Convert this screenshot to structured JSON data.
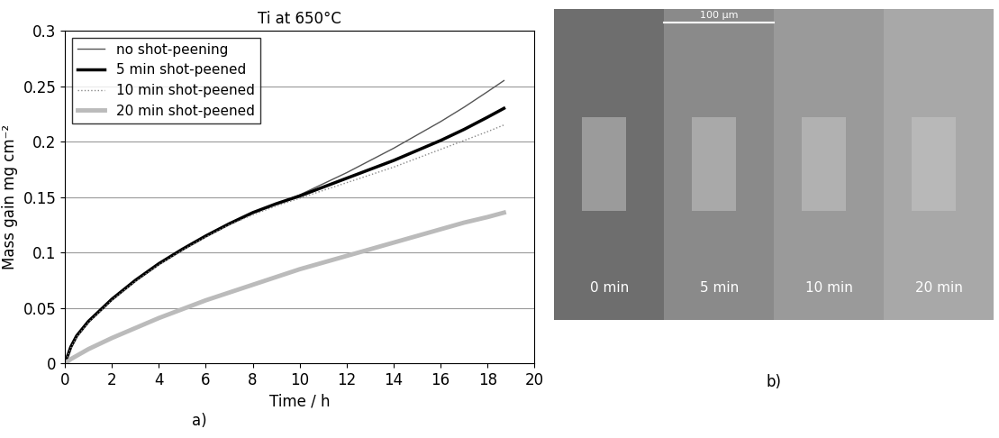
{
  "chart_data": {
    "type": "line",
    "title": "Ti at 650°C",
    "x_label": "Time / h",
    "y_label": "Mass gain mg cm⁻²",
    "panel_label": "a)",
    "x": [
      0,
      0.25,
      0.5,
      1,
      2,
      3,
      4,
      5,
      6,
      7,
      8,
      9,
      10,
      11,
      12,
      13,
      14,
      15,
      16,
      17,
      18,
      18.7
    ],
    "series": [
      {
        "name": "no shot-peening",
        "color": "#555555",
        "line_style": "solid",
        "values": [
          0,
          0.015,
          0.025,
          0.038,
          0.058,
          0.075,
          0.09,
          0.103,
          0.115,
          0.126,
          0.136,
          0.144,
          0.152,
          0.162,
          0.172,
          0.183,
          0.194,
          0.206,
          0.218,
          0.231,
          0.245,
          0.255
        ]
      },
      {
        "name": "5 min shot-peened",
        "color": "#000000",
        "line_style": "solid",
        "values": [
          0,
          0.015,
          0.025,
          0.038,
          0.058,
          0.075,
          0.09,
          0.103,
          0.115,
          0.126,
          0.136,
          0.144,
          0.151,
          0.159,
          0.167,
          0.175,
          0.183,
          0.192,
          0.201,
          0.211,
          0.222,
          0.23
        ]
      },
      {
        "name": "10 min shot-peened",
        "color": "#888888",
        "line_style": "dotted",
        "values": [
          0,
          0.014,
          0.024,
          0.037,
          0.057,
          0.074,
          0.089,
          0.102,
          0.114,
          0.125,
          0.134,
          0.142,
          0.149,
          0.156,
          0.163,
          0.17,
          0.177,
          0.185,
          0.193,
          0.201,
          0.209,
          0.215
        ]
      },
      {
        "name": "20 min shot-peened",
        "color": "#bbbbbb",
        "line_style": "solid",
        "values": [
          0,
          0.004,
          0.007,
          0.013,
          0.023,
          0.032,
          0.041,
          0.049,
          0.057,
          0.064,
          0.071,
          0.078,
          0.085,
          0.091,
          0.097,
          0.103,
          0.109,
          0.115,
          0.121,
          0.127,
          0.132,
          0.136
        ]
      }
    ],
    "xlim": [
      0,
      20
    ],
    "xticks": [
      0,
      2,
      4,
      6,
      8,
      10,
      12,
      14,
      16,
      18,
      20
    ],
    "ylim": [
      0,
      0.3
    ],
    "yticks": [
      0,
      0.05,
      0.1,
      0.15,
      0.2,
      0.25,
      0.3
    ],
    "grid": true,
    "legend": "upper left"
  },
  "micrograph": {
    "panel_label": "b)",
    "scale_bar": "100 µm",
    "panels": [
      "0 min",
      "5 min",
      "10 min",
      "20 min"
    ]
  }
}
